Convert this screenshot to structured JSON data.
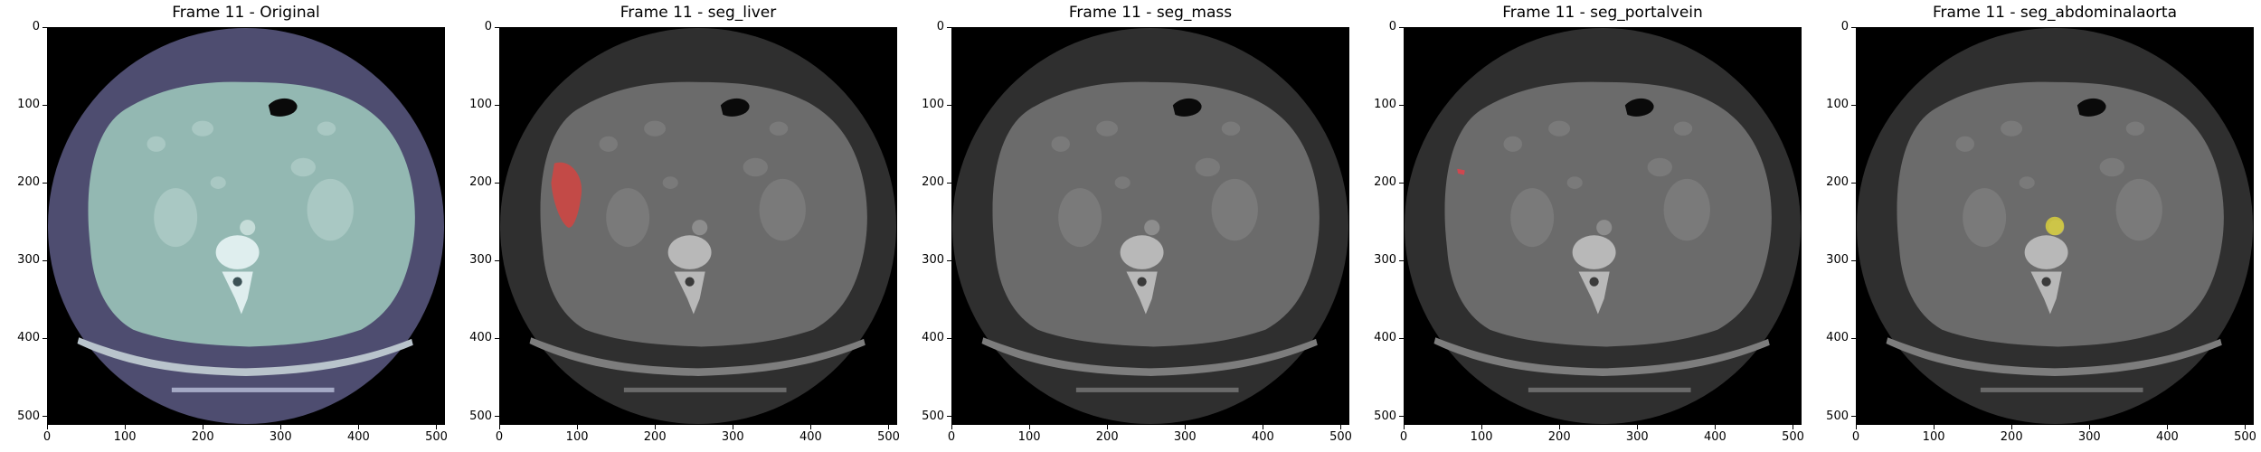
{
  "panels": [
    {
      "title": "Frame 11 - Original",
      "type": "original",
      "overlay": "none"
    },
    {
      "title": "Frame 11 - seg_liver",
      "type": "gray",
      "overlay": "liver",
      "overlay_color": "#d9423e"
    },
    {
      "title": "Frame 11 - seg_mass",
      "type": "gray",
      "overlay": "none"
    },
    {
      "title": "Frame 11 - seg_portalvein",
      "type": "gray",
      "overlay": "portalvein",
      "overlay_color": "#e0414a"
    },
    {
      "title": "Frame 11 - seg_abdominalaorta",
      "type": "gray",
      "overlay": "aorta",
      "overlay_color": "#d8cf3c"
    }
  ],
  "axes": {
    "x_ticks": [
      "0",
      "100",
      "200",
      "300",
      "400",
      "500"
    ],
    "y_ticks": [
      "0",
      "100",
      "200",
      "300",
      "400",
      "500"
    ],
    "xlim": [
      0,
      511
    ],
    "ylim": [
      511,
      0
    ]
  },
  "colors": {
    "original_background": "#4e4d70",
    "original_tissue": "#93b8b2",
    "gray_background": "#2f2f2f",
    "gray_tissue": "#6b6b6b"
  }
}
